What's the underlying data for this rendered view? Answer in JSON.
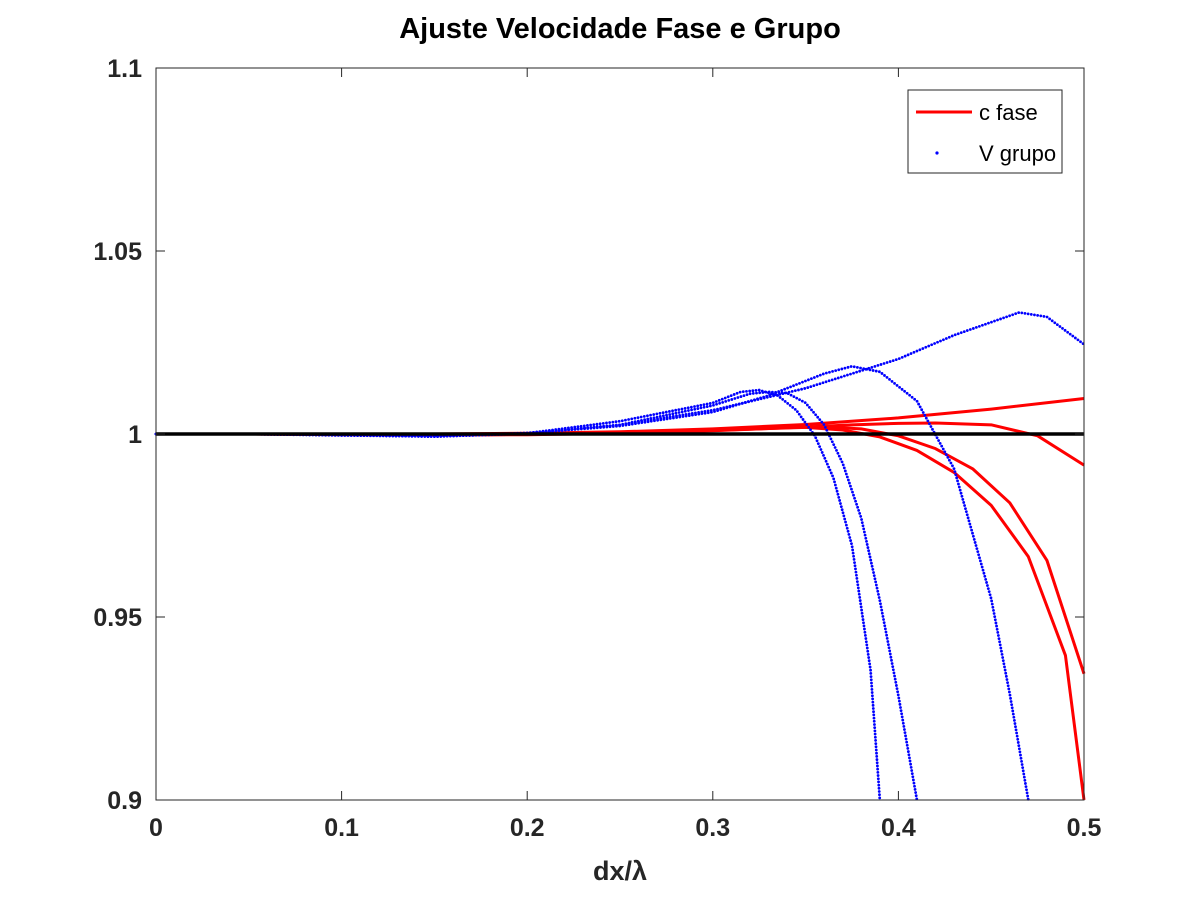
{
  "chart_data": {
    "type": "line",
    "title": "Ajuste Velocidade Fase e Grupo",
    "xlabel": "dx/λ",
    "ylabel": "",
    "xlim": [
      0,
      0.5
    ],
    "ylim": [
      0.9,
      1.1
    ],
    "xticks": [
      "0",
      "0.1",
      "0.2",
      "0.3",
      "0.4",
      "0.5"
    ],
    "yticks": [
      "0.9",
      "0.95",
      "1",
      "1.05",
      "1.1"
    ],
    "grid": false,
    "legend": {
      "placement": "top-right",
      "entries": [
        {
          "label": "c fase",
          "color": "#ff0000",
          "style": "solid"
        },
        {
          "label": "V grupo",
          "color": "#0000ff",
          "style": "dotted"
        }
      ]
    },
    "series": [
      {
        "group": "c fase",
        "color": "#ff0000",
        "style": "solid",
        "x": [
          0,
          0.05,
          0.1,
          0.15,
          0.2,
          0.25,
          0.3,
          0.35,
          0.4,
          0.45,
          0.5
        ],
        "y": [
          1.0,
          1.0,
          1.0,
          1.0,
          1.0002,
          1.0006,
          1.0014,
          1.0026,
          1.0044,
          1.0068,
          1.0097
        ]
      },
      {
        "group": "c fase",
        "color": "#ff0000",
        "style": "solid",
        "x": [
          0,
          0.05,
          0.1,
          0.15,
          0.2,
          0.25,
          0.3,
          0.35,
          0.375,
          0.4,
          0.42,
          0.45,
          0.475,
          0.5
        ],
        "y": [
          1.0,
          1.0,
          0.9998,
          0.9997,
          0.9998,
          1.0002,
          1.0009,
          1.0019,
          1.0025,
          1.0029,
          1.003,
          1.0025,
          0.9995,
          0.9915
        ]
      },
      {
        "group": "c fase",
        "color": "#ff0000",
        "style": "solid",
        "x": [
          0,
          0.05,
          0.1,
          0.15,
          0.2,
          0.25,
          0.3,
          0.35,
          0.36,
          0.38,
          0.4,
          0.42,
          0.44,
          0.46,
          0.48,
          0.5
        ],
        "y": [
          1.0,
          1.0,
          0.9999,
          0.9998,
          0.9999,
          1.0003,
          1.001,
          1.0018,
          1.0019,
          1.0014,
          0.9995,
          0.996,
          0.9905,
          0.9812,
          0.9655,
          0.9345
        ]
      },
      {
        "group": "c fase",
        "color": "#ff0000",
        "style": "solid",
        "x": [
          0,
          0.05,
          0.1,
          0.15,
          0.2,
          0.25,
          0.3,
          0.33,
          0.35,
          0.37,
          0.39,
          0.41,
          0.43,
          0.45,
          0.47,
          0.49,
          0.5
        ],
        "y": [
          1.0,
          1.0,
          0.9999,
          0.9998,
          0.9999,
          1.0004,
          1.0012,
          1.0018,
          1.0018,
          1.0011,
          0.9992,
          0.9955,
          0.9895,
          0.9805,
          0.9665,
          0.9395,
          0.8995
        ]
      },
      {
        "group": "c fase",
        "color": "#000000",
        "style": "solid",
        "x": [
          0,
          0.5
        ],
        "y": [
          1.0,
          1.0
        ]
      },
      {
        "group": "V grupo",
        "color": "#0000ff",
        "style": "dotted",
        "x": [
          0,
          0.05,
          0.1,
          0.15,
          0.2,
          0.25,
          0.3,
          0.35,
          0.4,
          0.43,
          0.465,
          0.48,
          0.5
        ],
        "y": [
          1.0,
          1.0,
          0.9996,
          0.9994,
          1.0003,
          1.0025,
          1.0065,
          1.0125,
          1.0205,
          1.027,
          1.0332,
          1.032,
          1.0245
        ]
      },
      {
        "group": "V grupo",
        "color": "#0000ff",
        "style": "dotted",
        "x": [
          0,
          0.05,
          0.1,
          0.15,
          0.2,
          0.25,
          0.3,
          0.33,
          0.36,
          0.375,
          0.39,
          0.41,
          0.43,
          0.45,
          0.46,
          0.47
        ],
        "y": [
          1.0,
          1.0,
          0.9997,
          0.9993,
          1.0002,
          1.0022,
          1.006,
          1.0105,
          1.0165,
          1.0185,
          1.017,
          1.009,
          0.9905,
          0.955,
          0.929,
          0.9
        ]
      },
      {
        "group": "V grupo",
        "color": "#0000ff",
        "style": "dotted",
        "x": [
          0,
          0.05,
          0.1,
          0.15,
          0.2,
          0.25,
          0.3,
          0.32,
          0.33,
          0.34,
          0.35,
          0.36,
          0.37,
          0.38,
          0.39,
          0.4,
          0.41
        ],
        "y": [
          1.0,
          1.0,
          0.9997,
          0.9993,
          1.0001,
          1.0025,
          1.0078,
          1.011,
          1.0115,
          1.0112,
          1.0085,
          1.0025,
          0.992,
          0.977,
          0.9545,
          0.9285,
          0.9
        ]
      },
      {
        "group": "V grupo",
        "color": "#0000ff",
        "style": "dotted",
        "x": [
          0,
          0.05,
          0.1,
          0.15,
          0.2,
          0.25,
          0.3,
          0.315,
          0.325,
          0.335,
          0.345,
          0.355,
          0.365,
          0.375,
          0.385,
          0.39
        ],
        "y": [
          1.0,
          1.0,
          0.9998,
          0.9994,
          1.0002,
          1.0035,
          1.0085,
          1.0115,
          1.012,
          1.0105,
          1.0065,
          0.9995,
          0.988,
          0.9695,
          0.9355,
          0.9
        ]
      }
    ]
  }
}
